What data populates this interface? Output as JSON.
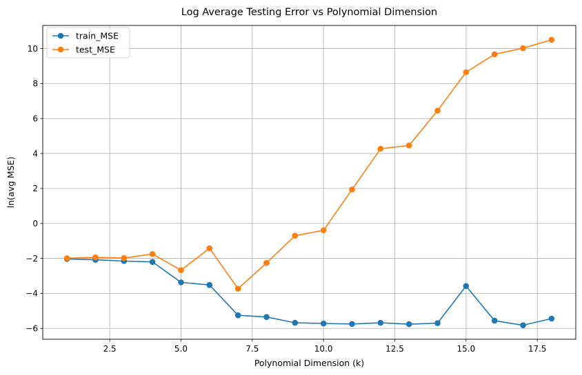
{
  "chart_data": {
    "type": "line",
    "title": "Log Average Testing Error vs Polynomial Dimension",
    "xlabel": "Polynomial Dimension (k)",
    "ylabel": "ln(avg MSE)",
    "xlim": [
      0.15,
      18.85
    ],
    "ylim": [
      -6.62,
      11.32
    ],
    "xticks": [
      2.5,
      5.0,
      7.5,
      10.0,
      12.5,
      15.0,
      17.5
    ],
    "xtick_labels": [
      "2.5",
      "5.0",
      "7.5",
      "10.0",
      "12.5",
      "15.0",
      "17.5"
    ],
    "yticks": [
      -6,
      -4,
      -2,
      0,
      2,
      4,
      6,
      8,
      10
    ],
    "ytick_labels": [
      "−6",
      "−4",
      "−2",
      "0",
      "2",
      "4",
      "6",
      "8",
      "10"
    ],
    "grid": true,
    "legend_position": "top-left",
    "x": [
      1,
      2,
      3,
      4,
      5,
      6,
      7,
      8,
      9,
      10,
      11,
      12,
      13,
      14,
      15,
      16,
      17,
      18
    ],
    "series": [
      {
        "name": "train_MSE",
        "color": "#1f77b4",
        "values": [
          -2.03,
          -2.08,
          -2.15,
          -2.2,
          -3.37,
          -3.52,
          -5.25,
          -5.35,
          -5.68,
          -5.72,
          -5.75,
          -5.68,
          -5.76,
          -5.7,
          -3.58,
          -5.56,
          -5.82,
          -5.44
        ]
      },
      {
        "name": "test_MSE",
        "color": "#ff7f0e",
        "values": [
          -1.99,
          -1.94,
          -1.98,
          -1.75,
          -2.67,
          -1.42,
          -3.73,
          -2.26,
          -0.7,
          -0.39,
          1.94,
          4.27,
          4.46,
          6.45,
          8.65,
          9.67,
          10.02,
          10.5
        ]
      }
    ]
  }
}
